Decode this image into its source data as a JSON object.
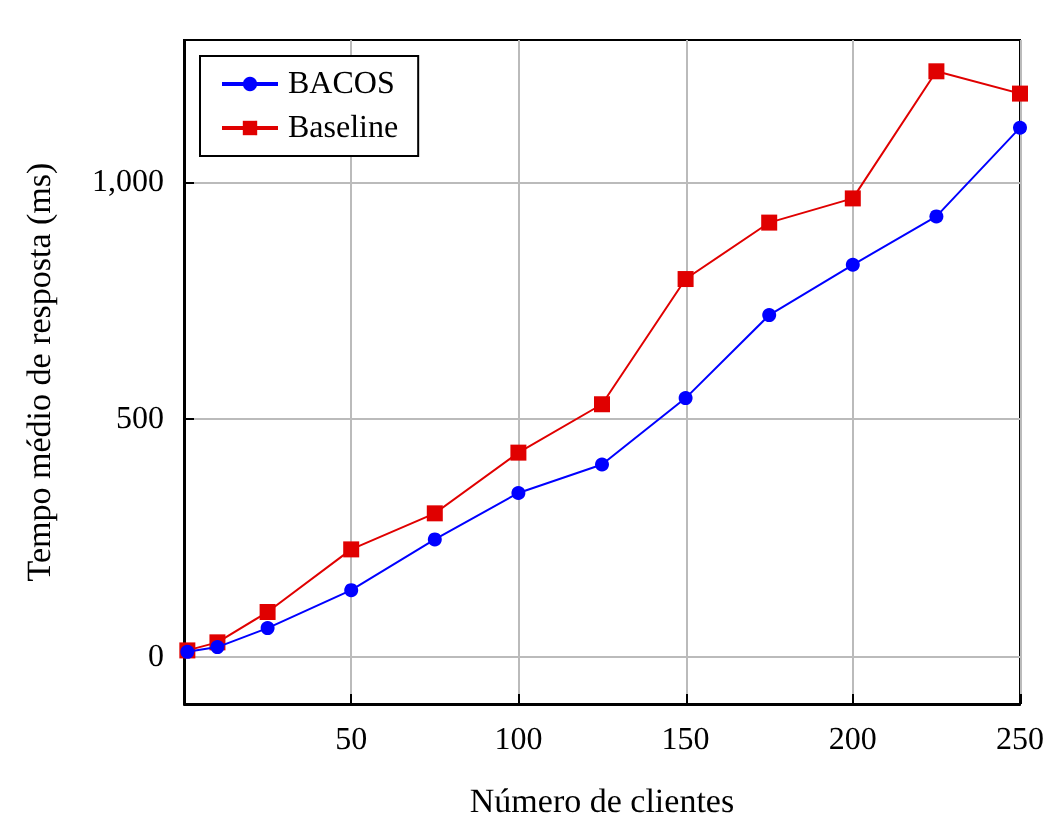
{
  "chart_data": {
    "type": "line",
    "xlabel": "Número de clientes",
    "ylabel": "Tempo médio de resposta (ms)",
    "x": [
      1,
      10,
      25,
      50,
      75,
      100,
      125,
      150,
      175,
      200,
      225,
      250
    ],
    "series": [
      {
        "name": "BACOS",
        "color": "#0000ff",
        "marker": "circle",
        "values": [
          10,
          20,
          60,
          140,
          247,
          345,
          405,
          545,
          720,
          826,
          928,
          1115
        ]
      },
      {
        "name": "Baseline",
        "color": "#e00000",
        "marker": "square",
        "values": [
          13,
          30,
          94,
          226,
          302,
          430,
          532,
          796,
          915,
          966,
          1234,
          1187
        ]
      }
    ],
    "xlim": [
      0,
      250
    ],
    "xticks": [
      50,
      100,
      150,
      200,
      250
    ],
    "ylim": [
      -100,
      1300
    ],
    "yticks": [
      0,
      500,
      {
        "value": 1000,
        "label": "1,000"
      }
    ],
    "grid": true,
    "legend": "top left"
  }
}
